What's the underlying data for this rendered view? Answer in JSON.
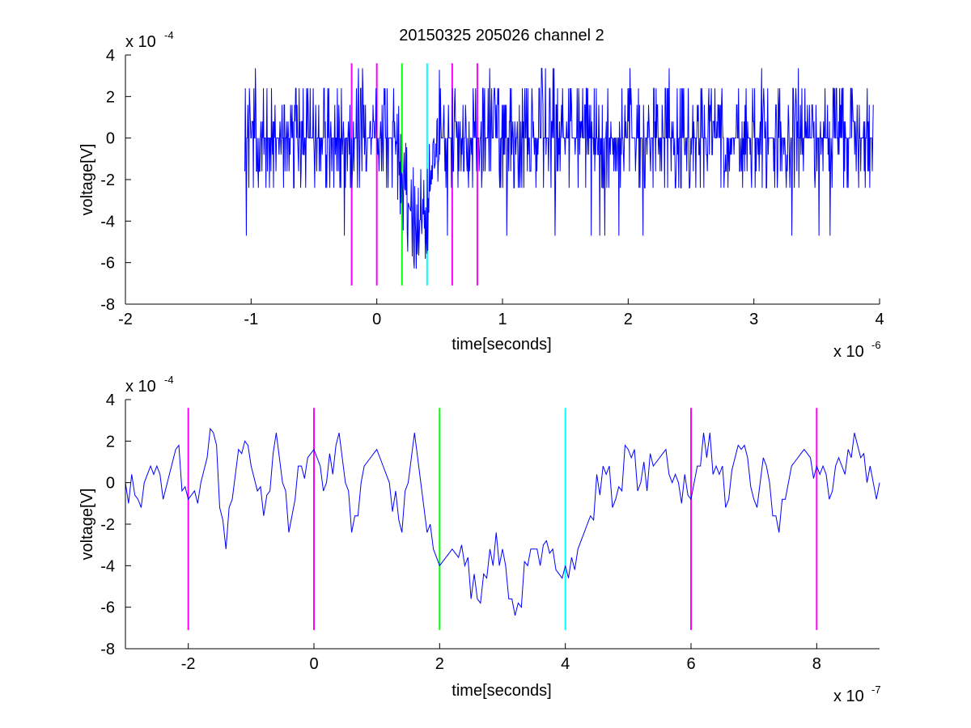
{
  "figure": {
    "title": "20150325 205026 channel 2"
  },
  "colors": {
    "trace": "#0000ff",
    "marker_magenta": "#ff00ff",
    "marker_green": "#00ff00",
    "marker_cyan": "#00ffff",
    "axis": "#000000"
  },
  "chart_data": [
    {
      "type": "line",
      "title": "20150325 205026 channel 2",
      "xlabel": "time[seconds]",
      "ylabel": "voltage[V]",
      "x_exponent_label": "x 10",
      "x_exponent": "-6",
      "y_exponent_label": "x 10",
      "y_exponent": "-4",
      "x_unit_scale": 1e-06,
      "y_unit_scale": 0.0001,
      "xlim": [
        -2,
        4
      ],
      "ylim": [
        -8,
        4
      ],
      "xticks": [
        -2,
        -1,
        0,
        1,
        2,
        3,
        4
      ],
      "yticks": [
        -8,
        -6,
        -4,
        -2,
        0,
        2,
        4
      ],
      "xtick_labels": [
        "-2",
        "-1",
        "0",
        "1",
        "2",
        "3",
        "4"
      ],
      "ytick_labels": [
        "-8",
        "-6",
        "-4",
        "-2",
        "0",
        "2",
        "4"
      ],
      "grid": false,
      "series": [
        {
          "x_range": [
            -1.05,
            3.95
          ],
          "baseline": 0,
          "quantization": 0.8,
          "noise_levels": [
            -2.4,
            -1.6,
            -0.8,
            0,
            0.8,
            1.6,
            2.4
          ],
          "dip": {
            "x_start": 0.15,
            "x_end": 0.5,
            "level_min": -6.4,
            "level_typical": -4.0
          }
        }
      ],
      "markers": [
        {
          "x": -0.2,
          "color": "magenta",
          "y_range": [
            -7.1,
            3.6
          ]
        },
        {
          "x": 0.0,
          "color": "magenta",
          "y_range": [
            -7.1,
            3.6
          ]
        },
        {
          "x": 0.2,
          "color": "green",
          "y_range": [
            -7.1,
            3.6
          ]
        },
        {
          "x": 0.4,
          "color": "cyan",
          "y_range": [
            -7.1,
            3.6
          ]
        },
        {
          "x": 0.6,
          "color": "magenta",
          "y_range": [
            -7.1,
            3.6
          ]
        },
        {
          "x": 0.8,
          "color": "magenta",
          "y_range": [
            -7.1,
            3.6
          ]
        }
      ]
    },
    {
      "type": "line",
      "title": "",
      "xlabel": "time[seconds]",
      "ylabel": "voltage[V]",
      "x_exponent_label": "x 10",
      "x_exponent": "-7",
      "y_exponent_label": "x 10",
      "y_exponent": "-4",
      "x_unit_scale": 1e-07,
      "y_unit_scale": 0.0001,
      "xlim": [
        -3,
        9
      ],
      "ylim": [
        -8,
        4
      ],
      "xticks": [
        -2,
        0,
        2,
        4,
        6,
        8
      ],
      "yticks": [
        -8,
        -6,
        -4,
        -2,
        0,
        2,
        4
      ],
      "xtick_labels": [
        "-2",
        "0",
        "2",
        "4",
        "6",
        "8"
      ],
      "ytick_labels": [
        "-8",
        "-6",
        "-4",
        "-2",
        "0",
        "2",
        "4"
      ],
      "grid": false,
      "series": [
        {
          "x": [
            -3.0,
            -2.8,
            -2.6,
            -2.4,
            -2.2,
            -2.0,
            -1.8,
            -1.6,
            -1.4,
            -1.2,
            -1.0,
            -0.8,
            -0.6,
            -0.4,
            -0.2,
            0.0,
            0.2,
            0.4,
            0.6,
            0.8,
            1.0,
            1.2,
            1.4,
            1.6,
            1.8,
            2.0,
            2.2,
            2.4,
            2.6,
            2.8,
            3.0,
            3.2,
            3.4,
            3.6,
            3.8,
            4.0,
            4.2,
            4.4,
            4.6,
            4.8,
            5.0,
            5.2,
            5.4,
            5.6,
            5.8,
            6.0,
            6.2,
            6.4,
            6.6,
            6.8,
            7.0,
            7.2,
            7.4,
            7.6,
            7.8,
            8.0,
            8.2,
            8.4,
            8.6,
            8.8,
            9.0
          ],
          "y": [
            0.0,
            -0.8,
            0.8,
            -0.8,
            1.6,
            -0.8,
            0.0,
            2.4,
            -3.2,
            1.6,
            0.8,
            -1.6,
            2.4,
            -2.4,
            0.8,
            1.6,
            0.0,
            2.4,
            -2.4,
            0.8,
            1.6,
            0.0,
            -2.4,
            2.4,
            -2.4,
            -4.0,
            -3.2,
            -4.0,
            -5.6,
            -3.2,
            -3.2,
            -6.4,
            -4.0,
            -4.0,
            -3.2,
            -4.0,
            -3.2,
            -1.6,
            0.8,
            -0.8,
            1.6,
            0.0,
            0.8,
            1.6,
            0.0,
            -0.8,
            2.4,
            0.8,
            -0.8,
            1.6,
            -0.8,
            0.8,
            -2.4,
            0.8,
            1.6,
            0.8,
            -0.8,
            0.8,
            2.4,
            0.0,
            0.0
          ]
        }
      ],
      "markers": [
        {
          "x": -2,
          "color": "magenta",
          "y_range": [
            -7.1,
            3.6
          ]
        },
        {
          "x": 0,
          "color": "magenta",
          "y_range": [
            -7.1,
            3.6
          ]
        },
        {
          "x": 2,
          "color": "green",
          "y_range": [
            -7.1,
            3.6
          ]
        },
        {
          "x": 4,
          "color": "cyan",
          "y_range": [
            -7.1,
            3.6
          ]
        },
        {
          "x": 6,
          "color": "magenta",
          "y_range": [
            -7.1,
            3.6
          ]
        },
        {
          "x": 8,
          "color": "magenta",
          "y_range": [
            -7.1,
            3.6
          ]
        }
      ]
    }
  ]
}
